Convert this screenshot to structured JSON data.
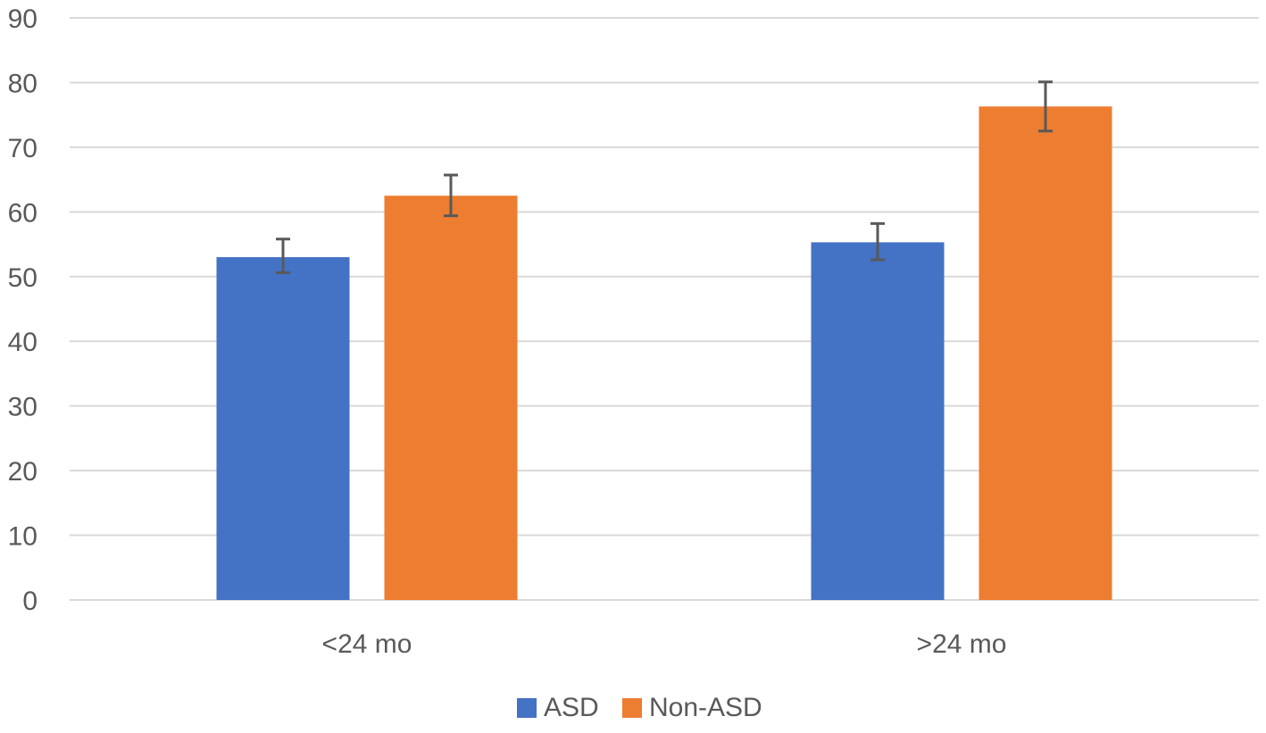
{
  "chart_data": {
    "type": "bar",
    "categories": [
      "<24 mo",
      ">24 mo"
    ],
    "series": [
      {
        "name": "ASD",
        "color": "#4472c4",
        "values": [
          53,
          55.3
        ],
        "error_low": [
          50.6,
          52.6
        ],
        "error_high": [
          55.8,
          58.2
        ]
      },
      {
        "name": "Non-ASD",
        "color": "#ed7d31",
        "values": [
          62.5,
          76.3
        ],
        "error_low": [
          59.4,
          72.5
        ],
        "error_high": [
          65.7,
          80.1
        ]
      }
    ],
    "ylim": [
      0,
      90
    ],
    "yticks": [
      "0",
      "10",
      "20",
      "30",
      "40",
      "50",
      "60",
      "70",
      "80",
      "90"
    ],
    "grid": true,
    "legend": "bottom",
    "title": "",
    "xlabel": "",
    "ylabel": ""
  }
}
